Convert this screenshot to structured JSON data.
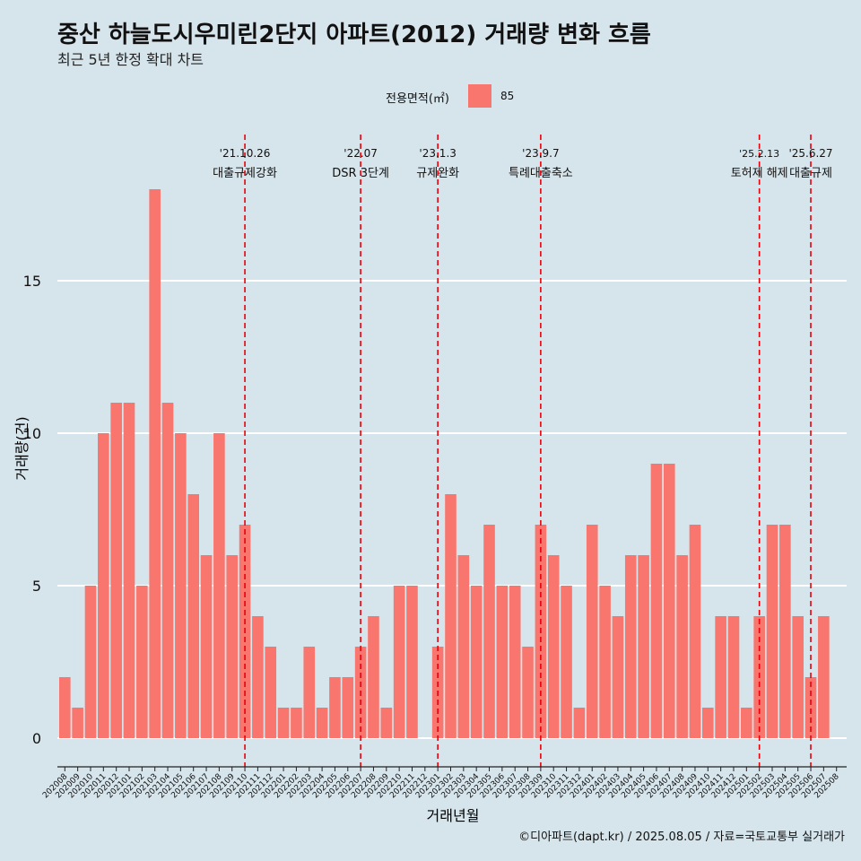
{
  "header": {
    "title": "중산 하늘도시우미린2단지 아파트(2012) 거래량 변화 흐름",
    "subtitle": "최근 5년 한정 확대 차트"
  },
  "legend": {
    "title": "전용면적(㎡)",
    "label": "85",
    "color": "#f8766d"
  },
  "caption": "©디아파트(dapt.kr) / 2025.08.05 / 자료=국토교통부 실거래가",
  "chart_data": {
    "type": "bar",
    "title": "중산 하늘도시우미린2단지 아파트(2012) 거래량 변화 흐름",
    "subtitle": "최근 5년 한정 확대 차트",
    "xlabel": "거래년월",
    "ylabel": "거래량(건)",
    "ylim": [
      0,
      18
    ],
    "yticks": [
      0,
      5,
      10,
      15
    ],
    "grid": true,
    "legend_position": "top",
    "bar_color": "#f8766d",
    "categories": [
      "202008",
      "202009",
      "202010",
      "202011",
      "202012",
      "202101",
      "202102",
      "202103",
      "202104",
      "202105",
      "202106",
      "202107",
      "202108",
      "202109",
      "202110",
      "202111",
      "202112",
      "202201",
      "202202",
      "202203",
      "202204",
      "202205",
      "202206",
      "202207",
      "202208",
      "202209",
      "202210",
      "202211",
      "202212",
      "202301",
      "202302",
      "202303",
      "202304",
      "202305",
      "202306",
      "202307",
      "202308",
      "202309",
      "202310",
      "202311",
      "202312",
      "202401",
      "202402",
      "202403",
      "202404",
      "202405",
      "202406",
      "202407",
      "202408",
      "202409",
      "202410",
      "202411",
      "202412",
      "202501",
      "202502",
      "202503",
      "202504",
      "202505",
      "202506",
      "202507",
      "202508"
    ],
    "series": [
      {
        "name": "85",
        "values": [
          2,
          1,
          5,
          10,
          11,
          11,
          5,
          18,
          11,
          10,
          8,
          6,
          10,
          6,
          7,
          4,
          3,
          1,
          1,
          3,
          1,
          2,
          2,
          3,
          4,
          1,
          5,
          5,
          null,
          3,
          8,
          6,
          5,
          7,
          5,
          5,
          3,
          7,
          6,
          5,
          1,
          7,
          5,
          4,
          6,
          6,
          9,
          9,
          6,
          7,
          1,
          4,
          4,
          1,
          4,
          7,
          7,
          4,
          2,
          4,
          null
        ]
      }
    ],
    "annotations": [
      {
        "month": "202110",
        "date": "'21.10.26",
        "label": "대출규제강화"
      },
      {
        "month": "202207",
        "date": "'22.07",
        "label": "DSR 3단계"
      },
      {
        "month": "202301",
        "date": "'23.1.3",
        "label": "규제완화"
      },
      {
        "month": "202309",
        "date": "'23.9.7",
        "label": "특례대출축소"
      },
      {
        "month": "202502",
        "date": "'25.2.13",
        "label": "토허제 해제"
      },
      {
        "month": "202506",
        "date": "'25.6.27",
        "label": "대출규제"
      }
    ]
  }
}
